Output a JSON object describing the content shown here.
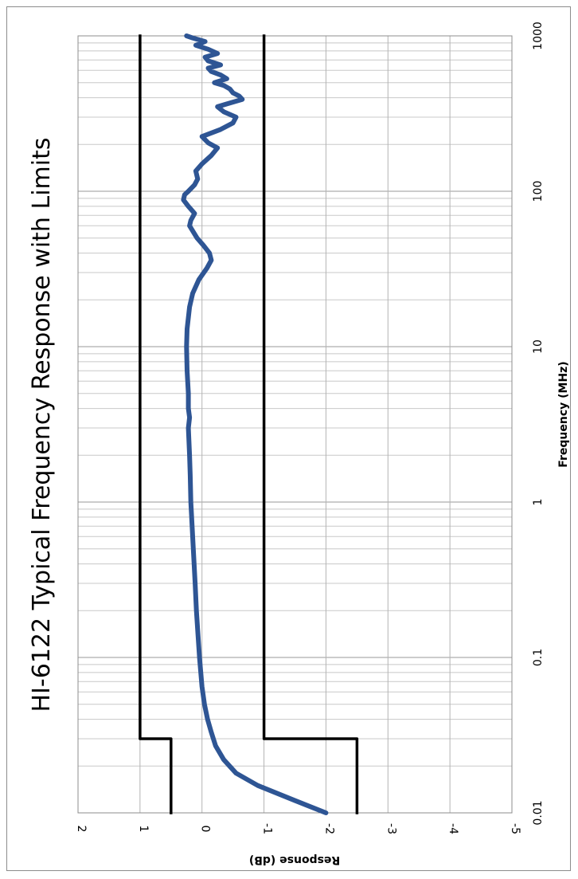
{
  "chart_data": {
    "type": "line",
    "title": "HI-6122 Typical Frequency Response with Limits",
    "xlabel": "Frequency (MHz)",
    "ylabel": "Response (dB)",
    "x_scale": "log",
    "xlim": [
      0.01,
      1000
    ],
    "ylim": [
      -5,
      2
    ],
    "x_tick_labels": [
      "0.01",
      "0.1",
      "1",
      "10",
      "100",
      "1000"
    ],
    "y_tick_labels": [
      "2",
      "1",
      "0",
      "-1",
      "-2",
      "-3",
      "-4",
      "-5"
    ],
    "grid": true,
    "legend": "none",
    "orientation": "rotated 90° clockwise",
    "series": [
      {
        "color": "#2e5594",
        "x": [
          0.01,
          0.012,
          0.015,
          0.018,
          0.022,
          0.027,
          0.033,
          0.04,
          0.05,
          0.065,
          0.08,
          0.1,
          0.15,
          0.2,
          0.3,
          0.5,
          0.7,
          1,
          1.5,
          2,
          3,
          3.5,
          4,
          5,
          7,
          10,
          13,
          18,
          22,
          27,
          32,
          36,
          40,
          45,
          50,
          60,
          65,
          72,
          80,
          88,
          95,
          100,
          110,
          120,
          135,
          150,
          170,
          190,
          205,
          225,
          250,
          275,
          300,
          325,
          350,
          370,
          390,
          410,
          430,
          455,
          480,
          500,
          530,
          560,
          590,
          620,
          650,
          690,
          730,
          770,
          820,
          870,
          920,
          970,
          1000
        ],
        "y": [
          -2.0,
          -1.5,
          -0.9,
          -0.55,
          -0.35,
          -0.22,
          -0.15,
          -0.09,
          -0.04,
          0.0,
          0.02,
          0.04,
          0.07,
          0.09,
          0.11,
          0.14,
          0.16,
          0.18,
          0.19,
          0.2,
          0.22,
          0.2,
          0.22,
          0.22,
          0.24,
          0.25,
          0.24,
          0.2,
          0.15,
          0.05,
          -0.08,
          -0.15,
          -0.12,
          -0.02,
          0.08,
          0.2,
          0.18,
          0.12,
          0.22,
          0.3,
          0.28,
          0.22,
          0.12,
          0.07,
          0.1,
          0.0,
          -0.15,
          -0.25,
          -0.1,
          0.0,
          -0.3,
          -0.5,
          -0.55,
          -0.35,
          -0.25,
          -0.45,
          -0.65,
          -0.6,
          -0.5,
          -0.45,
          -0.35,
          -0.2,
          -0.4,
          -0.3,
          -0.15,
          -0.1,
          -0.3,
          -0.1,
          -0.05,
          -0.25,
          -0.1,
          0.1,
          -0.05,
          0.15,
          0.25
        ]
      },
      {
        "color": "#000000",
        "x": [
          0.01,
          0.03,
          0.03,
          1000
        ],
        "y": [
          0.5,
          0.5,
          1.0,
          1.0
        ]
      },
      {
        "color": "#000000",
        "x": [
          0.01,
          0.03,
          0.03,
          1000
        ],
        "y": [
          -2.5,
          -2.5,
          -1.0,
          -1.0
        ]
      }
    ]
  }
}
